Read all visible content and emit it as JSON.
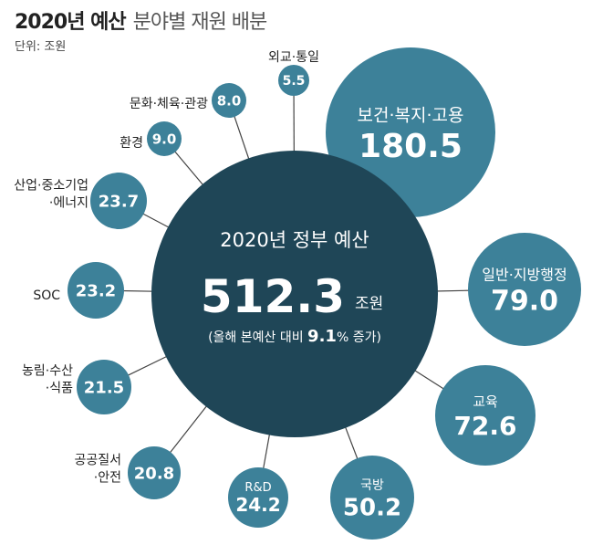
{
  "header": {
    "title_bold": "2020년 예산",
    "title_light": "분야별 재원 배분",
    "unit": "단위: 조원"
  },
  "chart_data": {
    "type": "bubble",
    "title": "2020년 예산 분야별 재원 배분",
    "unit": "조원",
    "center": {
      "label": "2020년 정부 예산",
      "value": 512.3,
      "value_text": "512.3",
      "unit": "조원",
      "note_prefix": "(올해 본예산 대비",
      "note_value": "9.1",
      "note_suffix": "% 증가)"
    },
    "categories": [
      "보건·복지·고용",
      "일반·지방행정",
      "교육",
      "국방",
      "R&D",
      "공공질서·안전",
      "농림·수산·식품",
      "SOC",
      "산업·중소기업·에너지",
      "환경",
      "문화·체육·관광",
      "외교·통일"
    ],
    "values": [
      180.5,
      79.0,
      72.6,
      50.2,
      24.2,
      20.8,
      21.5,
      23.2,
      23.7,
      9.0,
      8.0,
      5.5
    ],
    "value_texts": [
      "180.5",
      "79.0",
      "72.6",
      "50.2",
      "24.2",
      "20.8",
      "21.5",
      "23.2",
      "23.7",
      "9.0",
      "8.0",
      "5.5"
    ],
    "label_lines": [
      [
        "보건·복지·고용"
      ],
      [
        "일반·지방행정"
      ],
      [
        "교육"
      ],
      [
        "국방"
      ],
      [
        "R&D"
      ],
      [
        "공공질서",
        "·안전"
      ],
      [
        "농림·수산",
        "·식품"
      ],
      [
        "SOC"
      ],
      [
        "산업·중소기업",
        "·에너지"
      ],
      [
        "환경"
      ],
      [
        "문화·체육·관광"
      ],
      [
        "외교·통일"
      ]
    ],
    "colors": {
      "center": "#1f4657",
      "bubble": "#3d8199",
      "connector": "#444444",
      "text_on_bubble": "#ffffff",
      "outer_label": "#222222"
    }
  }
}
